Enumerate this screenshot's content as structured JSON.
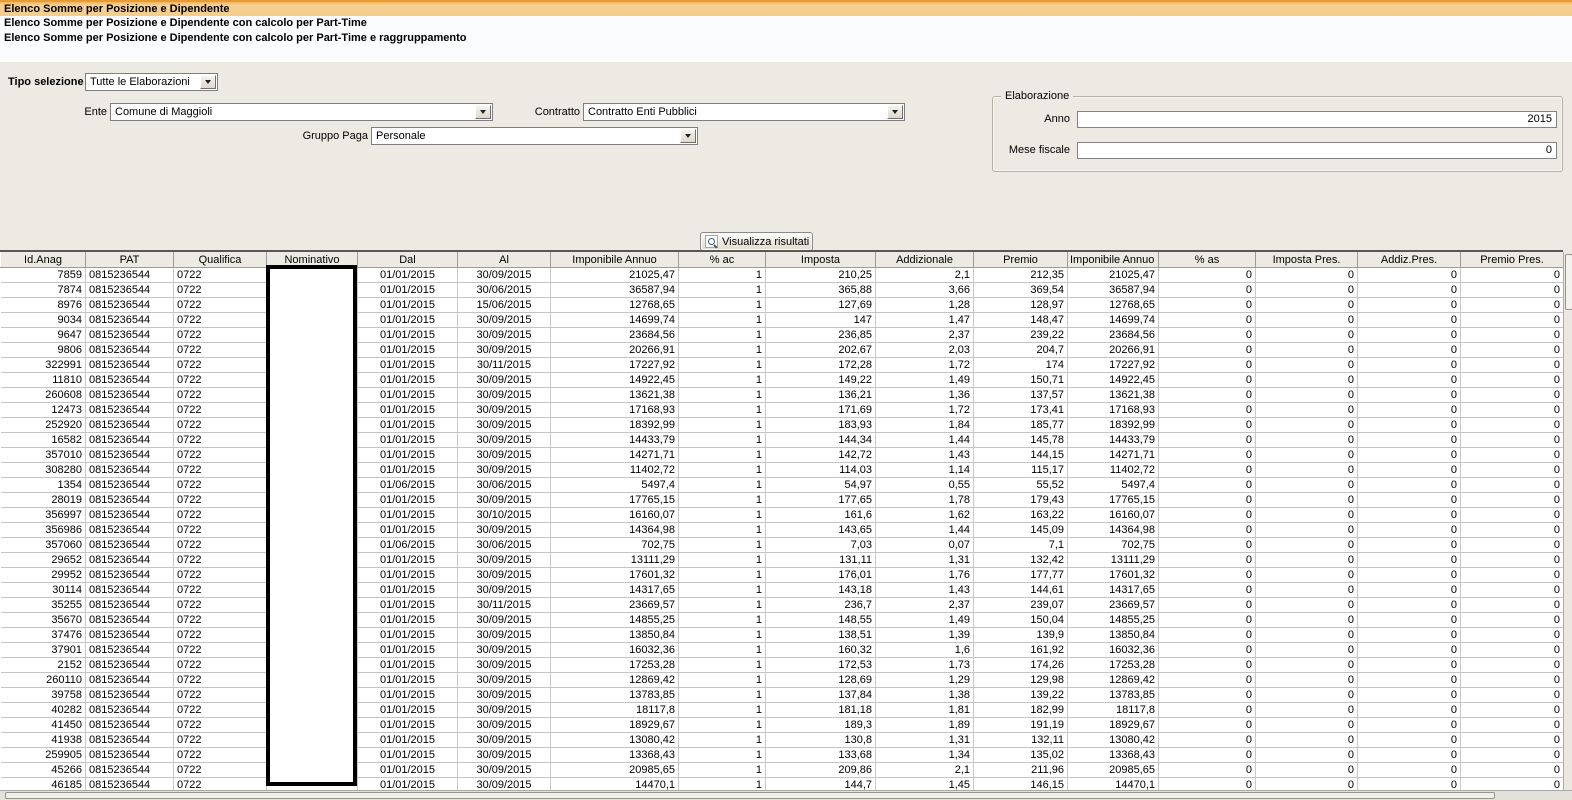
{
  "report_list": {
    "items": [
      {
        "label": "Elenco Somme per Posizione e Dipendente",
        "selected": true
      },
      {
        "label": "Elenco Somme per Posizione e Dipendente con calcolo per Part-Time",
        "selected": false
      },
      {
        "label": "Elenco Somme per Posizione e Dipendente con calcolo per Part-Time e raggruppamento",
        "selected": false
      }
    ]
  },
  "filters": {
    "tipo_selezione_label": "Tipo selezione",
    "tipo_selezione_value": "Tutte le Elaborazioni",
    "ente_label": "Ente",
    "ente_value": "Comune di Maggioli",
    "contratto_label": "Contratto",
    "contratto_value": "Contratto Enti Pubblici",
    "gruppo_paga_label": "Gruppo Paga",
    "gruppo_paga_value": "Personale"
  },
  "elaborazione": {
    "group_label": "Elaborazione",
    "anno_label": "Anno",
    "anno_value": "2015",
    "mese_fiscale_label": "Mese fiscale",
    "mese_fiscale_value": "0"
  },
  "actions": {
    "visualizza_label": "Visualizza risultati",
    "visualizza_icon": "magnifier-icon"
  },
  "table": {
    "columns": [
      "Id.Anag",
      "PAT",
      "Qualifica",
      "Nominativo",
      "Dal",
      "Al",
      "Imponibile Annuo",
      "% ac",
      "Imposta",
      "Addizionale",
      "Premio",
      "Imponibile Annuo P...",
      "% as",
      "Imposta Pres.",
      "Addiz.Pres.",
      "Premio Pres."
    ],
    "rows": [
      [
        "7859",
        "0815236544",
        "0722",
        "",
        "01/01/2015",
        "30/09/2015",
        "21025,47",
        "1",
        "210,25",
        "2,1",
        "212,35",
        "21025,47",
        "0",
        "0",
        "0",
        "0"
      ],
      [
        "7874",
        "0815236544",
        "0722",
        "",
        "01/01/2015",
        "30/06/2015",
        "36587,94",
        "1",
        "365,88",
        "3,66",
        "369,54",
        "36587,94",
        "0",
        "0",
        "0",
        "0"
      ],
      [
        "8976",
        "0815236544",
        "0722",
        "",
        "01/01/2015",
        "15/06/2015",
        "12768,65",
        "1",
        "127,69",
        "1,28",
        "128,97",
        "12768,65",
        "0",
        "0",
        "0",
        "0"
      ],
      [
        "9034",
        "0815236544",
        "0722",
        "",
        "01/01/2015",
        "30/09/2015",
        "14699,74",
        "1",
        "147",
        "1,47",
        "148,47",
        "14699,74",
        "0",
        "0",
        "0",
        "0"
      ],
      [
        "9647",
        "0815236544",
        "0722",
        "",
        "01/01/2015",
        "30/09/2015",
        "23684,56",
        "1",
        "236,85",
        "2,37",
        "239,22",
        "23684,56",
        "0",
        "0",
        "0",
        "0"
      ],
      [
        "9806",
        "0815236544",
        "0722",
        "",
        "01/01/2015",
        "30/09/2015",
        "20266,91",
        "1",
        "202,67",
        "2,03",
        "204,7",
        "20266,91",
        "0",
        "0",
        "0",
        "0"
      ],
      [
        "322991",
        "0815236544",
        "0722",
        "",
        "01/01/2015",
        "30/11/2015",
        "17227,92",
        "1",
        "172,28",
        "1,72",
        "174",
        "17227,92",
        "0",
        "0",
        "0",
        "0"
      ],
      [
        "11810",
        "0815236544",
        "0722",
        "",
        "01/01/2015",
        "30/09/2015",
        "14922,45",
        "1",
        "149,22",
        "1,49",
        "150,71",
        "14922,45",
        "0",
        "0",
        "0",
        "0"
      ],
      [
        "260608",
        "0815236544",
        "0722",
        "",
        "01/01/2015",
        "30/09/2015",
        "13621,38",
        "1",
        "136,21",
        "1,36",
        "137,57",
        "13621,38",
        "0",
        "0",
        "0",
        "0"
      ],
      [
        "12473",
        "0815236544",
        "0722",
        "",
        "01/01/2015",
        "30/09/2015",
        "17168,93",
        "1",
        "171,69",
        "1,72",
        "173,41",
        "17168,93",
        "0",
        "0",
        "0",
        "0"
      ],
      [
        "252920",
        "0815236544",
        "0722",
        "",
        "01/01/2015",
        "30/09/2015",
        "18392,99",
        "1",
        "183,93",
        "1,84",
        "185,77",
        "18392,99",
        "0",
        "0",
        "0",
        "0"
      ],
      [
        "16582",
        "0815236544",
        "0722",
        "",
        "01/01/2015",
        "30/09/2015",
        "14433,79",
        "1",
        "144,34",
        "1,44",
        "145,78",
        "14433,79",
        "0",
        "0",
        "0",
        "0"
      ],
      [
        "357010",
        "0815236544",
        "0722",
        "",
        "01/01/2015",
        "30/09/2015",
        "14271,71",
        "1",
        "142,72",
        "1,43",
        "144,15",
        "14271,71",
        "0",
        "0",
        "0",
        "0"
      ],
      [
        "308280",
        "0815236544",
        "0722",
        "",
        "01/01/2015",
        "30/09/2015",
        "11402,72",
        "1",
        "114,03",
        "1,14",
        "115,17",
        "11402,72",
        "0",
        "0",
        "0",
        "0"
      ],
      [
        "1354",
        "0815236544",
        "0722",
        "",
        "01/06/2015",
        "30/06/2015",
        "5497,4",
        "1",
        "54,97",
        "0,55",
        "55,52",
        "5497,4",
        "0",
        "0",
        "0",
        "0"
      ],
      [
        "28019",
        "0815236544",
        "0722",
        "",
        "01/01/2015",
        "30/09/2015",
        "17765,15",
        "1",
        "177,65",
        "1,78",
        "179,43",
        "17765,15",
        "0",
        "0",
        "0",
        "0"
      ],
      [
        "356997",
        "0815236544",
        "0722",
        "",
        "01/01/2015",
        "30/10/2015",
        "16160,07",
        "1",
        "161,6",
        "1,62",
        "163,22",
        "16160,07",
        "0",
        "0",
        "0",
        "0"
      ],
      [
        "356986",
        "0815236544",
        "0722",
        "",
        "01/01/2015",
        "30/09/2015",
        "14364,98",
        "1",
        "143,65",
        "1,44",
        "145,09",
        "14364,98",
        "0",
        "0",
        "0",
        "0"
      ],
      [
        "357060",
        "0815236544",
        "0722",
        "",
        "01/06/2015",
        "30/06/2015",
        "702,75",
        "1",
        "7,03",
        "0,07",
        "7,1",
        "702,75",
        "0",
        "0",
        "0",
        "0"
      ],
      [
        "29652",
        "0815236544",
        "0722",
        "",
        "01/01/2015",
        "30/09/2015",
        "13111,29",
        "1",
        "131,11",
        "1,31",
        "132,42",
        "13111,29",
        "0",
        "0",
        "0",
        "0"
      ],
      [
        "29952",
        "0815236544",
        "0722",
        "",
        "01/01/2015",
        "30/09/2015",
        "17601,32",
        "1",
        "176,01",
        "1,76",
        "177,77",
        "17601,32",
        "0",
        "0",
        "0",
        "0"
      ],
      [
        "30114",
        "0815236544",
        "0722",
        "",
        "01/01/2015",
        "30/09/2015",
        "14317,65",
        "1",
        "143,18",
        "1,43",
        "144,61",
        "14317,65",
        "0",
        "0",
        "0",
        "0"
      ],
      [
        "35255",
        "0815236544",
        "0722",
        "",
        "01/01/2015",
        "30/11/2015",
        "23669,57",
        "1",
        "236,7",
        "2,37",
        "239,07",
        "23669,57",
        "0",
        "0",
        "0",
        "0"
      ],
      [
        "35670",
        "0815236544",
        "0722",
        "",
        "01/01/2015",
        "30/09/2015",
        "14855,25",
        "1",
        "148,55",
        "1,49",
        "150,04",
        "14855,25",
        "0",
        "0",
        "0",
        "0"
      ],
      [
        "37476",
        "0815236544",
        "0722",
        "",
        "01/01/2015",
        "30/09/2015",
        "13850,84",
        "1",
        "138,51",
        "1,39",
        "139,9",
        "13850,84",
        "0",
        "0",
        "0",
        "0"
      ],
      [
        "37901",
        "0815236544",
        "0722",
        "",
        "01/01/2015",
        "30/09/2015",
        "16032,36",
        "1",
        "160,32",
        "1,6",
        "161,92",
        "16032,36",
        "0",
        "0",
        "0",
        "0"
      ],
      [
        "2152",
        "0815236544",
        "0722",
        "",
        "01/01/2015",
        "30/09/2015",
        "17253,28",
        "1",
        "172,53",
        "1,73",
        "174,26",
        "17253,28",
        "0",
        "0",
        "0",
        "0"
      ],
      [
        "260110",
        "0815236544",
        "0722",
        "",
        "01/01/2015",
        "30/09/2015",
        "12869,42",
        "1",
        "128,69",
        "1,29",
        "129,98",
        "12869,42",
        "0",
        "0",
        "0",
        "0"
      ],
      [
        "39758",
        "0815236544",
        "0722",
        "",
        "01/01/2015",
        "30/09/2015",
        "13783,85",
        "1",
        "137,84",
        "1,38",
        "139,22",
        "13783,85",
        "0",
        "0",
        "0",
        "0"
      ],
      [
        "40282",
        "0815236544",
        "0722",
        "",
        "01/01/2015",
        "30/09/2015",
        "18117,8",
        "1",
        "181,18",
        "1,81",
        "182,99",
        "18117,8",
        "0",
        "0",
        "0",
        "0"
      ],
      [
        "41450",
        "0815236544",
        "0722",
        "",
        "01/01/2015",
        "30/09/2015",
        "18929,67",
        "1",
        "189,3",
        "1,89",
        "191,19",
        "18929,67",
        "0",
        "0",
        "0",
        "0"
      ],
      [
        "41938",
        "0815236544",
        "0722",
        "",
        "01/01/2015",
        "30/09/2015",
        "13080,42",
        "1",
        "130,8",
        "1,31",
        "132,11",
        "13080,42",
        "0",
        "0",
        "0",
        "0"
      ],
      [
        "259905",
        "0815236544",
        "0722",
        "",
        "01/01/2015",
        "30/09/2015",
        "13368,43",
        "1",
        "133,68",
        "1,34",
        "135,02",
        "13368,43",
        "0",
        "0",
        "0",
        "0"
      ],
      [
        "45266",
        "0815236544",
        "0722",
        "",
        "01/01/2015",
        "30/09/2015",
        "20985,65",
        "1",
        "209,86",
        "2,1",
        "211,96",
        "20985,65",
        "0",
        "0",
        "0",
        "0"
      ],
      [
        "46185",
        "0815236544",
        "0722",
        "",
        "01/01/2015",
        "30/09/2015",
        "14470,1",
        "1",
        "144,7",
        "1,45",
        "146,15",
        "14470,1",
        "0",
        "0",
        "0",
        "0"
      ]
    ]
  },
  "colors": {
    "selected_item_bg": "#F3CD8A",
    "selected_item_edge": "#E89A33",
    "form_bg": "#ECEAE3",
    "grid_line": "#C9C9C9",
    "header_line": "#9B9B9B"
  }
}
